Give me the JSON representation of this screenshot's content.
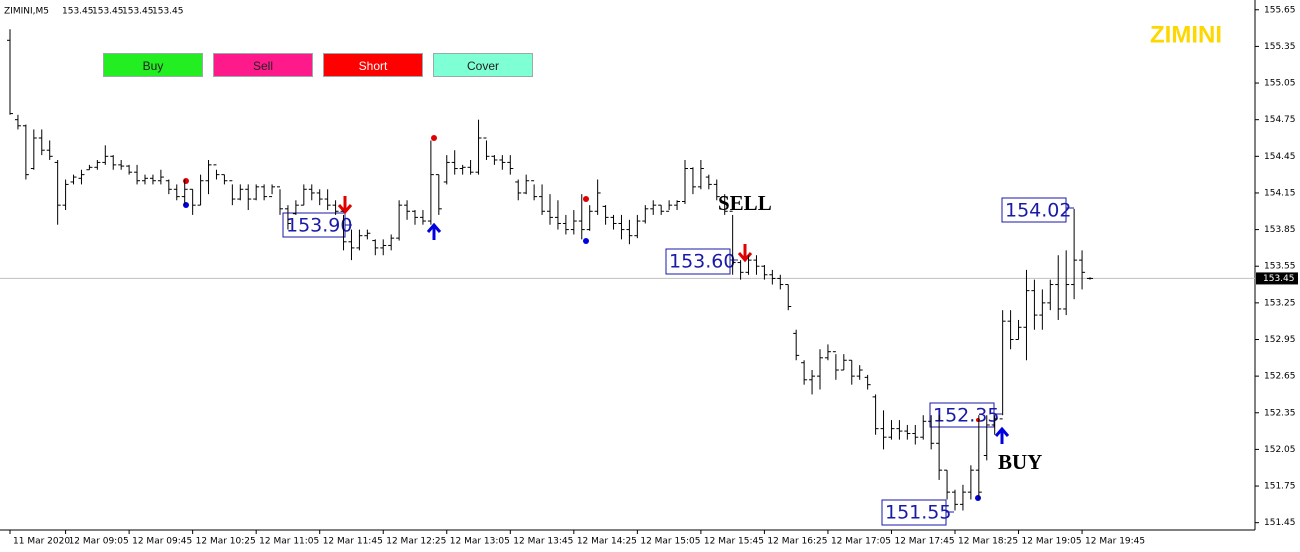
{
  "symbol": "ZIMINI,M5",
  "quote": [
    153.45,
    153.45,
    153.45,
    153.45
  ],
  "buttons": [
    "Buy",
    "Sell",
    "Short",
    "Cover"
  ],
  "watermark": "ZIMINI",
  "chart_data": {
    "type": "ohlc",
    "color": "#000000",
    "open": [
      155.4,
      154.75,
      154.7,
      154.35,
      154.6,
      154.5,
      154.4,
      154.05,
      154.24,
      154.27,
      154.34,
      154.36,
      154.4,
      154.45,
      154.38,
      154.37,
      154.32,
      154.25,
      154.27,
      154.25,
      154.25,
      154.18,
      154.12,
      154.18,
      154.05,
      154.25,
      154.38,
      154.3,
      154.25,
      154.1,
      154.18,
      154.1,
      154.2,
      154.12,
      154.2,
      154.02,
      153.98,
      154.05,
      154.18,
      154.15,
      154.1,
      154.05,
      154.0,
      153.75,
      153.7,
      153.8,
      153.76,
      153.7,
      153.72,
      153.78,
      154.05,
      154.0,
      153.95,
      153.92,
      154.3,
      154.24,
      154.4,
      154.35,
      154.36,
      154.32,
      154.6,
      154.45,
      154.42,
      154.4,
      154.24,
      154.15,
      154.25,
      154.12,
      154.0,
      153.95,
      153.9,
      153.85,
      153.92,
      153.85,
      154.0,
      154.04,
      153.95,
      153.9,
      153.85,
      153.8,
      153.92,
      154.02,
      154.05,
      154.0,
      154.05,
      154.08,
      154.35,
      154.2,
      154.28,
      154.22,
      154.12,
      154.0,
      153.58,
      153.5,
      153.6,
      153.55,
      153.48,
      153.45,
      153.4,
      153.0,
      152.76,
      152.62,
      152.65,
      152.8,
      152.85,
      152.7,
      152.78,
      152.65,
      152.64,
      152.48,
      152.22,
      152.15,
      152.22,
      152.2,
      152.18,
      152.15,
      152.28,
      152.1,
      151.88,
      151.7,
      151.6,
      151.7,
      151.88,
      152.0,
      152.25,
      152.3,
      153.1,
      152.95,
      153.05,
      153.35,
      153.15,
      153.25,
      153.4,
      153.2,
      153.4,
      153.6,
      153.45
    ],
    "high": [
      155.49,
      154.79,
      154.71,
      154.67,
      154.67,
      154.58,
      154.42,
      154.26,
      154.3,
      154.34,
      154.38,
      154.42,
      154.54,
      154.46,
      154.42,
      154.38,
      154.38,
      154.3,
      154.3,
      154.34,
      154.26,
      154.22,
      154.26,
      154.18,
      154.3,
      154.42,
      154.34,
      154.3,
      154.22,
      154.22,
      154.22,
      154.22,
      154.22,
      154.22,
      154.18,
      154.05,
      154.09,
      154.22,
      154.22,
      154.18,
      154.18,
      154.09,
      153.97,
      153.85,
      153.85,
      153.85,
      153.77,
      153.77,
      153.81,
      154.09,
      154.09,
      154.01,
      154.01,
      154.58,
      154.3,
      154.46,
      154.5,
      154.38,
      154.42,
      154.75,
      154.58,
      154.46,
      154.46,
      154.46,
      154.26,
      154.3,
      154.22,
      154.22,
      154.14,
      154.09,
      153.97,
      154.01,
      154.14,
      154.05,
      154.26,
      154.05,
      153.97,
      153.97,
      153.93,
      153.97,
      154.05,
      154.09,
      154.05,
      154.09,
      154.09,
      154.42,
      154.36,
      154.42,
      154.3,
      154.26,
      154.14,
      153.97,
      153.6,
      153.64,
      153.64,
      153.56,
      153.52,
      153.48,
      153.4,
      153.03,
      152.78,
      152.7,
      152.87,
      152.91,
      152.83,
      152.83,
      152.78,
      152.74,
      152.66,
      152.5,
      152.37,
      152.29,
      152.29,
      152.25,
      152.25,
      152.33,
      152.33,
      152.33,
      151.88,
      151.72,
      151.76,
      151.92,
      152.33,
      152.33,
      152.33,
      153.19,
      153.19,
      153.11,
      153.52,
      153.44,
      153.36,
      153.44,
      153.64,
      153.68,
      154.02,
      153.68,
      153.46
    ],
    "low": [
      154.79,
      154.67,
      154.26,
      154.34,
      154.46,
      154.42,
      153.89,
      154.01,
      154.22,
      154.22,
      154.34,
      154.34,
      154.38,
      154.34,
      154.34,
      154.3,
      154.22,
      154.22,
      154.22,
      154.22,
      154.14,
      154.09,
      154.05,
      153.97,
      154.05,
      154.14,
      154.26,
      154.22,
      154.05,
      154.09,
      154.01,
      154.09,
      154.09,
      154.14,
      153.97,
      153.85,
      153.97,
      154.05,
      154.09,
      154.05,
      154.01,
      153.97,
      153.68,
      153.6,
      153.68,
      153.77,
      153.64,
      153.64,
      153.68,
      153.76,
      153.93,
      153.89,
      153.89,
      153.89,
      153.97,
      154.22,
      154.3,
      154.3,
      154.3,
      154.3,
      154.42,
      154.38,
      154.34,
      154.3,
      154.09,
      154.14,
      154.09,
      153.97,
      153.89,
      153.85,
      153.81,
      153.81,
      153.77,
      153.84,
      153.97,
      153.89,
      153.85,
      153.77,
      153.73,
      153.78,
      153.9,
      153.97,
      153.97,
      154.01,
      154.01,
      154.06,
      154.14,
      154.18,
      154.18,
      154.09,
      153.97,
      153.48,
      153.44,
      153.48,
      153.48,
      153.44,
      153.4,
      153.36,
      153.19,
      152.78,
      152.58,
      152.5,
      152.54,
      152.78,
      152.62,
      152.7,
      152.58,
      152.62,
      152.54,
      152.17,
      152.05,
      152.13,
      152.13,
      152.13,
      152.09,
      152.13,
      152.05,
      151.8,
      151.64,
      151.55,
      151.55,
      151.64,
      151.64,
      151.96,
      152.17,
      152.33,
      152.87,
      152.95,
      152.78,
      153.03,
      153.03,
      153.19,
      153.11,
      153.15,
      153.28,
      153.36,
      153.44
    ],
    "close": [
      154.8,
      154.7,
      154.3,
      154.6,
      154.5,
      154.45,
      154.05,
      154.22,
      154.28,
      154.3,
      154.36,
      154.4,
      154.45,
      154.38,
      154.37,
      154.32,
      154.25,
      154.27,
      154.25,
      154.28,
      154.18,
      154.12,
      154.18,
      154.05,
      154.25,
      154.38,
      154.3,
      154.25,
      154.1,
      154.18,
      154.1,
      154.2,
      154.12,
      154.2,
      154.02,
      153.9,
      154.05,
      154.18,
      154.15,
      154.1,
      154.05,
      154.0,
      153.75,
      153.7,
      153.8,
      153.82,
      153.7,
      153.72,
      153.78,
      154.05,
      154.0,
      153.95,
      153.92,
      154.3,
      154.02,
      154.4,
      154.35,
      154.36,
      154.32,
      154.6,
      154.45,
      154.42,
      154.4,
      154.35,
      154.15,
      154.25,
      154.12,
      154.0,
      153.95,
      153.9,
      153.85,
      153.92,
      153.85,
      154.0,
      154.15,
      153.95,
      153.9,
      153.85,
      153.8,
      153.92,
      154.02,
      154.05,
      154.0,
      154.05,
      154.08,
      154.35,
      154.2,
      154.35,
      154.22,
      154.12,
      154.0,
      153.58,
      153.5,
      153.6,
      153.55,
      153.48,
      153.45,
      153.4,
      153.22,
      152.82,
      152.62,
      152.65,
      152.8,
      152.85,
      152.7,
      152.78,
      152.65,
      152.7,
      152.58,
      152.22,
      152.15,
      152.22,
      152.2,
      152.18,
      152.15,
      152.28,
      152.1,
      151.88,
      151.7,
      151.6,
      151.7,
      151.88,
      151.7,
      152.25,
      152.3,
      153.1,
      152.95,
      153.05,
      153.35,
      153.15,
      153.25,
      153.4,
      153.2,
      153.4,
      153.6,
      153.5,
      153.45
    ],
    "last_price": 153.45,
    "xlim": [
      0,
      136
    ],
    "xticks": [
      {
        "value": 0,
        "label": "11 Mar 2020"
      },
      {
        "value": 7,
        "label": "12 Mar 09:05"
      },
      {
        "value": 15,
        "label": "12 Mar 09:45"
      },
      {
        "value": 23,
        "label": "12 Mar 10:25"
      },
      {
        "value": 31,
        "label": "12 Mar 11:05"
      },
      {
        "value": 39,
        "label": "12 Mar 11:45"
      },
      {
        "value": 47,
        "label": "12 Mar 12:25"
      },
      {
        "value": 55,
        "label": "12 Mar 13:05"
      },
      {
        "value": 63,
        "label": "12 Mar 13:45"
      },
      {
        "value": 71,
        "label": "12 Mar 14:25"
      },
      {
        "value": 79,
        "label": "12 Mar 15:05"
      },
      {
        "value": 87,
        "label": "12 Mar 15:45"
      },
      {
        "value": 95,
        "label": "12 Mar 16:25"
      },
      {
        "value": 103,
        "label": "12 Mar 17:05"
      },
      {
        "value": 111,
        "label": "12 Mar 17:45"
      },
      {
        "value": 119,
        "label": "12 Mar 18:25"
      },
      {
        "value": 127,
        "label": "12 Mar 19:05"
      },
      {
        "value": 135,
        "label": "12 Mar 19:45"
      }
    ],
    "ylim": [
      151.39,
      155.73
    ],
    "yticks": [
      155.65,
      155.35,
      155.05,
      154.75,
      154.45,
      154.15,
      153.85,
      153.55,
      153.25,
      152.95,
      152.65,
      152.35,
      152.05,
      151.75,
      151.45
    ],
    "price_labels": [
      "153.90",
      "153.60",
      "154.02",
      "152.35",
      "151.55"
    ],
    "annotations": [
      "SELL",
      "BUY"
    ]
  }
}
